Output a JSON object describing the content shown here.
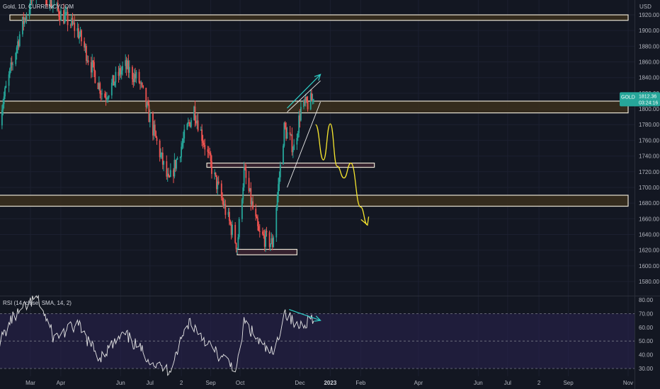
{
  "header": {
    "symbol_title": "Gold, 1D, CURRENCYCOM",
    "currency": "USD"
  },
  "price_badge": {
    "symbol": "GOLD",
    "price": "1812.36",
    "countdown": "03:24:16"
  },
  "rsi": {
    "title": "RSI (14, close, SMA, 14, 2)"
  },
  "colors": {
    "background": "#131722",
    "up": "#26a69a",
    "down": "#ef5350",
    "zone_fill": "#3b2f1c",
    "zone_border": "#e8e2d2",
    "small_zone_fill": "#3a2230",
    "forecast": "#f5e52e",
    "trend_arrow": "#2fd0c8",
    "rsi_line": "#e6e6e6",
    "rsi_band": "#2a2350",
    "badge": "#26a69a"
  },
  "chart_data": [
    {
      "type": "candlestick",
      "title": "Gold, 1D, CURRENCYCOM",
      "ylabel": "USD",
      "ylim": [
        1560,
        1940
      ],
      "y_ticks": [
        "1920.00",
        "1900.00",
        "1880.00",
        "1860.00",
        "1840.00",
        "1820.00",
        "1800.00",
        "1780.00",
        "1760.00",
        "1740.00",
        "1720.00",
        "1700.00",
        "1680.00",
        "1660.00",
        "1640.00",
        "1620.00",
        "1600.00",
        "1580.00"
      ],
      "x_ticks": [
        "Mar",
        "Apr",
        "Jun",
        "Jul",
        "2",
        "Sep",
        "Oct",
        "Dec",
        "2023",
        "Feb",
        "Apr",
        "Jun",
        "Jul",
        "2",
        "Sep",
        "Nov"
      ],
      "trend_waypoints": [
        {
          "x": "2022-01-28",
          "y": 1790
        },
        {
          "x": "2022-02-20",
          "y": 1905
        },
        {
          "x": "2022-03-08",
          "y": 1960
        },
        {
          "x": "2022-03-25",
          "y": 1930
        },
        {
          "x": "2022-04-18",
          "y": 1900
        },
        {
          "x": "2022-05-15",
          "y": 1815
        },
        {
          "x": "2022-06-05",
          "y": 1855
        },
        {
          "x": "2022-06-20",
          "y": 1835
        },
        {
          "x": "2022-07-20",
          "y": 1705
        },
        {
          "x": "2022-08-15",
          "y": 1800
        },
        {
          "x": "2022-09-05",
          "y": 1712
        },
        {
          "x": "2022-09-28",
          "y": 1625
        },
        {
          "x": "2022-10-05",
          "y": 1720
        },
        {
          "x": "2022-10-20",
          "y": 1640
        },
        {
          "x": "2022-11-03",
          "y": 1628
        },
        {
          "x": "2022-11-15",
          "y": 1775
        },
        {
          "x": "2022-11-25",
          "y": 1750
        },
        {
          "x": "2022-12-02",
          "y": 1800
        },
        {
          "x": "2022-12-15",
          "y": 1812
        }
      ],
      "last_price": 1812.36,
      "zones": [
        {
          "from": "2022-02-08",
          "to": "2023-11-01",
          "low": 1913,
          "high": 1920
        },
        {
          "from": "2022-01-28",
          "to": "2023-11-01",
          "low": 1795,
          "high": 1810
        },
        {
          "from": "2022-08-28",
          "to": "2023-02-15",
          "low": 1726,
          "high": 1731
        },
        {
          "from": "2022-01-27",
          "to": "2023-11-01",
          "low": 1676,
          "high": 1690
        },
        {
          "from": "2022-09-28",
          "to": "2022-11-28",
          "low": 1614,
          "high": 1621
        }
      ],
      "forecast_path": [
        {
          "x": "2022-12-17",
          "y": 1780
        },
        {
          "x": "2022-12-25",
          "y": 1735
        },
        {
          "x": "2023-01-01",
          "y": 1781
        },
        {
          "x": "2023-01-08",
          "y": 1727
        },
        {
          "x": "2023-01-15",
          "y": 1712
        },
        {
          "x": "2023-01-22",
          "y": 1731
        },
        {
          "x": "2023-02-01",
          "y": 1675
        },
        {
          "x": "2023-02-08",
          "y": 1652
        }
      ],
      "wedge_upper": [
        {
          "x": "2022-11-18",
          "y": 1796
        },
        {
          "x": "2022-12-22",
          "y": 1836
        }
      ],
      "wedge_lower": [
        {
          "x": "2022-11-18",
          "y": 1700
        },
        {
          "x": "2022-12-22",
          "y": 1809
        }
      ],
      "trend_arrow": [
        {
          "x": "2022-11-18",
          "y": 1801
        },
        {
          "x": "2022-12-22",
          "y": 1844
        }
      ]
    },
    {
      "type": "line",
      "title": "RSI (14, close, SMA, 14, 2)",
      "ylim": [
        25,
        83
      ],
      "y_ticks": [
        "80.00",
        "70.00",
        "60.00",
        "50.00",
        "40.00",
        "30.00"
      ],
      "bands": [
        30,
        50,
        70
      ],
      "band_fill": [
        30,
        70
      ],
      "series_waypoints": [
        {
          "x": "2022-01-28",
          "y": 48
        },
        {
          "x": "2022-02-10",
          "y": 66
        },
        {
          "x": "2022-03-08",
          "y": 82
        },
        {
          "x": "2022-03-25",
          "y": 52
        },
        {
          "x": "2022-04-18",
          "y": 62
        },
        {
          "x": "2022-05-10",
          "y": 38
        },
        {
          "x": "2022-06-05",
          "y": 55
        },
        {
          "x": "2022-07-08",
          "y": 32
        },
        {
          "x": "2022-07-20",
          "y": 28
        },
        {
          "x": "2022-08-10",
          "y": 65
        },
        {
          "x": "2022-09-08",
          "y": 40
        },
        {
          "x": "2022-09-28",
          "y": 30
        },
        {
          "x": "2022-10-05",
          "y": 64
        },
        {
          "x": "2022-10-25",
          "y": 45
        },
        {
          "x": "2022-11-05",
          "y": 40
        },
        {
          "x": "2022-11-15",
          "y": 72
        },
        {
          "x": "2022-11-28",
          "y": 60
        },
        {
          "x": "2022-12-15",
          "y": 68
        }
      ],
      "divergence_arrow": [
        {
          "x": "2022-11-20",
          "y": 73
        },
        {
          "x": "2022-12-22",
          "y": 65
        }
      ]
    }
  ]
}
